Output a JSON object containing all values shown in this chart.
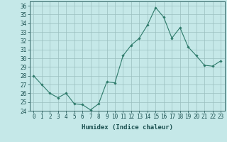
{
  "xlabel": "Humidex (Indice chaleur)",
  "x": [
    0,
    1,
    2,
    3,
    4,
    5,
    6,
    7,
    8,
    9,
    10,
    11,
    12,
    13,
    14,
    15,
    16,
    17,
    18,
    19,
    20,
    21,
    22,
    23
  ],
  "y": [
    28,
    27,
    26,
    25.5,
    26,
    24.8,
    24.7,
    24.1,
    24.8,
    27.3,
    27.2,
    30.3,
    31.5,
    32.3,
    33.8,
    35.8,
    34.7,
    32.3,
    33.5,
    31.3,
    30.3,
    29.2,
    29.1,
    29.7
  ],
  "line_color": "#2d7a6a",
  "marker": "D",
  "marker_size": 1.8,
  "bg_color": "#c5e8e8",
  "grid_color": "#9bbfbf",
  "tick_color": "#1a5050",
  "ylim": [
    24,
    36.5
  ],
  "yticks": [
    24,
    25,
    26,
    27,
    28,
    29,
    30,
    31,
    32,
    33,
    34,
    35,
    36
  ],
  "xlim": [
    -0.5,
    23.5
  ],
  "xticks": [
    0,
    1,
    2,
    3,
    4,
    5,
    6,
    7,
    8,
    9,
    10,
    11,
    12,
    13,
    14,
    15,
    16,
    17,
    18,
    19,
    20,
    21,
    22,
    23
  ],
  "xlabel_fontsize": 6.5,
  "tick_fontsize": 5.5,
  "linewidth": 0.8
}
